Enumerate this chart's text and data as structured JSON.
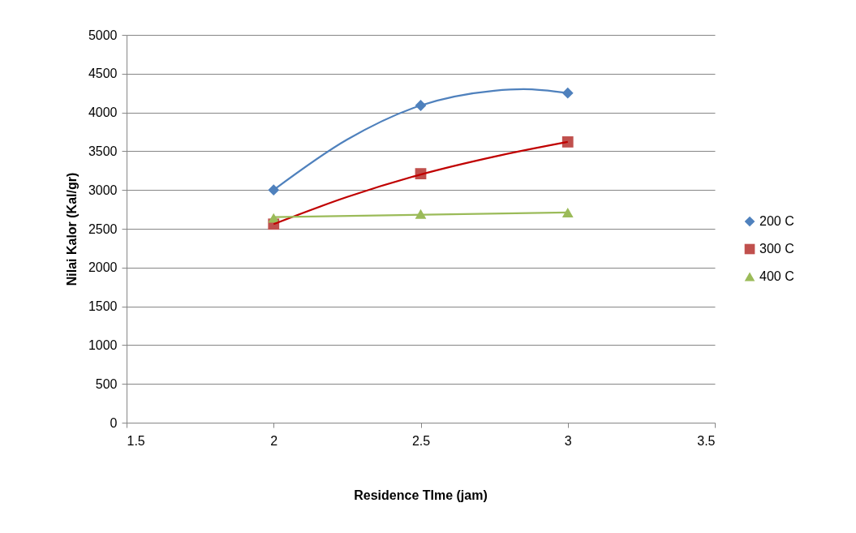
{
  "chart_data": {
    "type": "scatter",
    "xlabel": "Residence TIme (jam)",
    "ylabel": "Nilai Kalor (Kal/gr)",
    "xlim": [
      1.5,
      3.5
    ],
    "xticks": [
      1.5,
      2,
      2.5,
      3,
      3.5
    ],
    "ylim": [
      0,
      5000
    ],
    "yticks": [
      0,
      500,
      1000,
      1500,
      2000,
      2500,
      3000,
      3500,
      4000,
      4500,
      5000
    ],
    "grid": "y",
    "legend": "right",
    "series": [
      {
        "name": "200 C",
        "color": "#4f81bd",
        "marker": "diamond",
        "x": [
          2,
          2.5,
          3
        ],
        "values": [
          3000,
          4090,
          4250
        ]
      },
      {
        "name": "300 C",
        "color": "#c0504d",
        "marker": "square",
        "x": [
          2,
          2.5,
          3
        ],
        "values": [
          2560,
          3210,
          3620
        ]
      },
      {
        "name": "400 C",
        "color": "#9bbb59",
        "marker": "triangle",
        "x": [
          2,
          2.5,
          3
        ],
        "values": [
          2640,
          2690,
          2710
        ]
      },
      {
        "type": "line",
        "color": "#4f81bd",
        "marker": "none",
        "x": [
          2,
          2.25,
          2.5,
          2.75,
          2.85,
          3
        ],
        "values": [
          3000,
          3650,
          4090,
          4280,
          4300,
          4250
        ]
      },
      {
        "type": "line",
        "color": "#c00000",
        "marker": "none",
        "x": [
          2,
          2.25,
          2.5,
          2.75,
          3
        ],
        "values": [
          2560,
          2910,
          3200,
          3430,
          3620
        ]
      },
      {
        "type": "line",
        "color": "#9bbb59",
        "marker": "none",
        "x": [
          2,
          3
        ],
        "values": [
          2650,
          2710
        ]
      }
    ]
  }
}
